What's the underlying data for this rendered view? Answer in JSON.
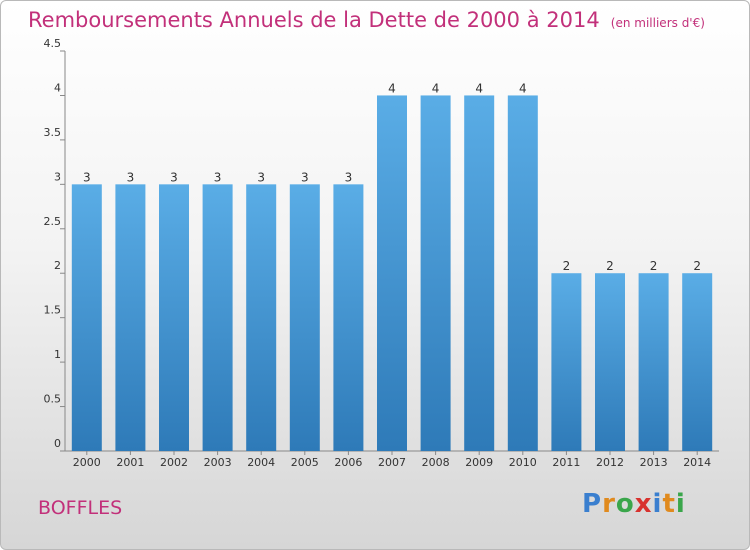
{
  "header": {
    "title": "Remboursements Annuels de la Dette de 2000 à 2014",
    "unit": "(en milliers d'€)"
  },
  "commune": "BOFFLES",
  "logo": {
    "letters": [
      "P",
      "r",
      "o",
      "x",
      "i",
      "t",
      "i"
    ],
    "colors": [
      "#3a7fcf",
      "#e08a1e",
      "#3aa64b",
      "#d8322e",
      "#3a7fcf",
      "#e08a1e",
      "#3aa64b"
    ]
  },
  "chart_data": {
    "type": "bar",
    "categories": [
      "2000",
      "2001",
      "2002",
      "2003",
      "2004",
      "2005",
      "2006",
      "2007",
      "2008",
      "2009",
      "2010",
      "2011",
      "2012",
      "2013",
      "2014"
    ],
    "values": [
      3,
      3,
      3,
      3,
      3,
      3,
      3,
      4,
      4,
      4,
      4,
      2,
      2,
      2,
      2
    ],
    "data_labels": [
      "3",
      "3",
      "3",
      "3",
      "3",
      "3",
      "3",
      "4",
      "4",
      "4",
      "4",
      "2",
      "2",
      "2",
      "2"
    ],
    "ylim": [
      0,
      4.5
    ],
    "yticks": [
      0,
      0.5,
      1,
      1.5,
      2,
      2.5,
      3,
      3.5,
      4,
      4.5
    ],
    "ytick_labels": [
      "0",
      "0.5",
      "1",
      "1.5",
      "2",
      "2.5",
      "3",
      "3.5",
      "4",
      "4.5"
    ],
    "grid": false,
    "bar_color_top": "#5aade6",
    "bar_color_bottom": "#2e7ab8"
  }
}
